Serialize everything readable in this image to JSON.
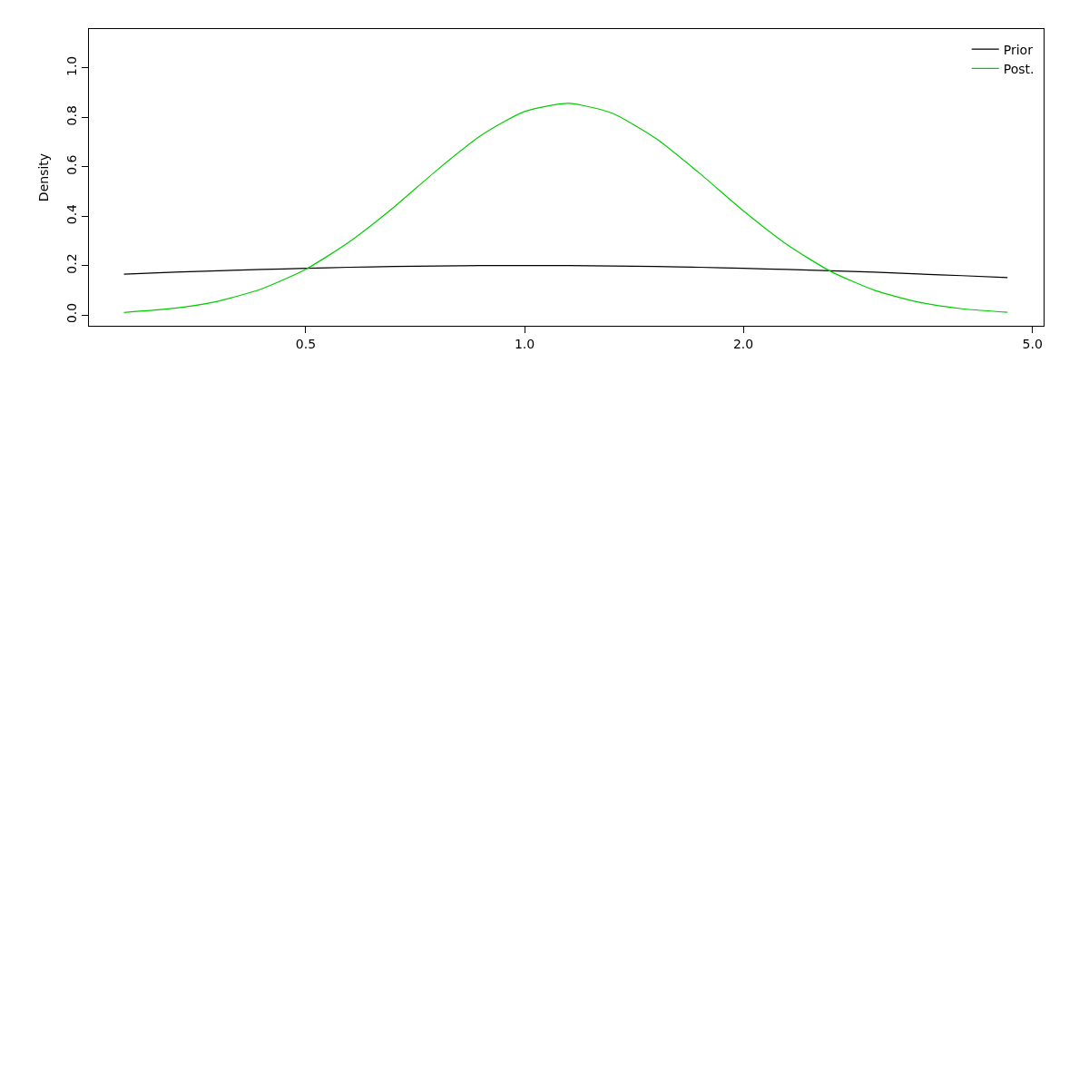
{
  "chart_data": {
    "type": "line",
    "ylabel": "Density",
    "log": "x",
    "x": [
      0.281,
      0.33,
      0.379,
      0.435,
      0.5,
      0.574,
      0.66,
      0.758,
      0.871,
      1,
      1.149,
      1.32,
      1.516,
      1.741,
      2,
      2.297,
      2.639,
      3.031,
      3.482,
      4,
      4.62
    ],
    "series": [
      {
        "name": "Prior",
        "color": "#000000",
        "values": [
          0.165,
          0.173,
          0.179,
          0.184,
          0.189,
          0.193,
          0.196,
          0.198,
          0.2,
          0.2,
          0.2,
          0.198,
          0.196,
          0.193,
          0.189,
          0.184,
          0.179,
          0.173,
          0.166,
          0.159,
          0.151
        ]
      },
      {
        "name": "Post.",
        "color": "#00cd00",
        "values": [
          0.01,
          0.027,
          0.056,
          0.106,
          0.185,
          0.296,
          0.435,
          0.587,
          0.727,
          0.824,
          0.857,
          0.817,
          0.715,
          0.574,
          0.422,
          0.285,
          0.176,
          0.1,
          0.052,
          0.025,
          0.011
        ]
      }
    ],
    "xlim": [
      0.2515,
      5.18
    ],
    "xticks": [
      0.5,
      {
        "value": 1,
        "label": "1.0"
      },
      {
        "value": 2,
        "label": "2.0"
      },
      {
        "value": 5,
        "label": "5.0"
      }
    ],
    "ylim": [
      -0.044,
      1.158
    ],
    "yticks": [
      {
        "value": 0,
        "label": "0.0"
      },
      0.2,
      0.4,
      0.6,
      0.8,
      {
        "value": 1,
        "label": "1.0"
      }
    ],
    "legend": "top right",
    "line_style": "solid",
    "marker": "none"
  }
}
